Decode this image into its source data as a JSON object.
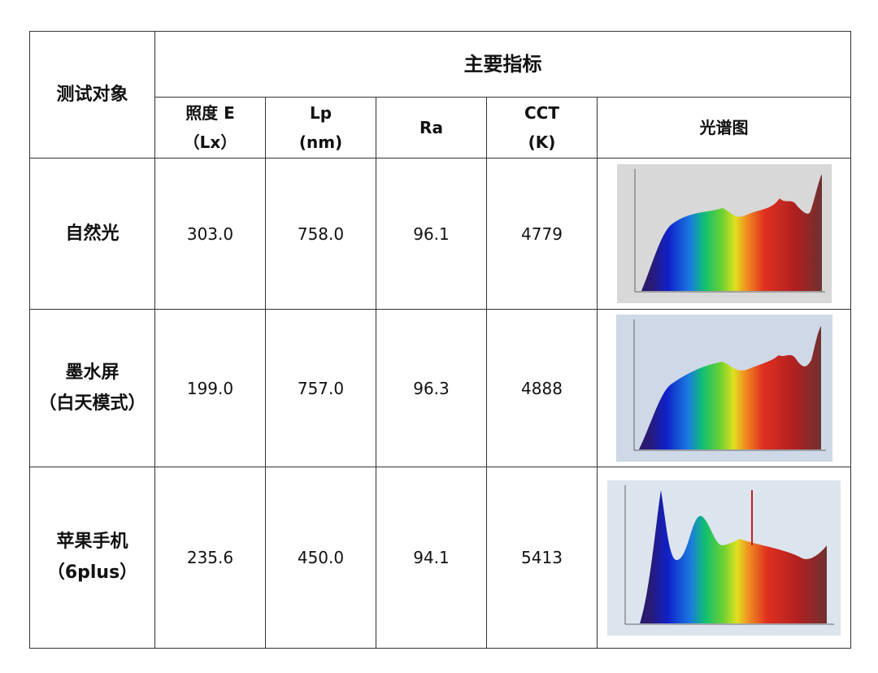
{
  "header": {
    "row_label": "测试对象",
    "group": "主要指标",
    "columns": [
      [
        "照度 E",
        "（Lx）"
      ],
      [
        "Lp",
        "(nm)"
      ],
      [
        "Ra"
      ],
      [
        "CCT",
        "(K)"
      ],
      [
        "光谱图"
      ]
    ]
  },
  "rows": [
    {
      "subject": [
        "自然光"
      ],
      "values": [
        "303.0",
        "758.0",
        "96.1",
        "4779"
      ]
    },
    {
      "subject": [
        "墨水屏",
        "（白天模式）"
      ],
      "values": [
        "199.0",
        "757.0",
        "96.3",
        "4888"
      ]
    },
    {
      "subject": [
        "苹果手机",
        "（6plus）"
      ],
      "values": [
        "235.6",
        "450.0",
        "94.1",
        "5413"
      ]
    }
  ]
}
